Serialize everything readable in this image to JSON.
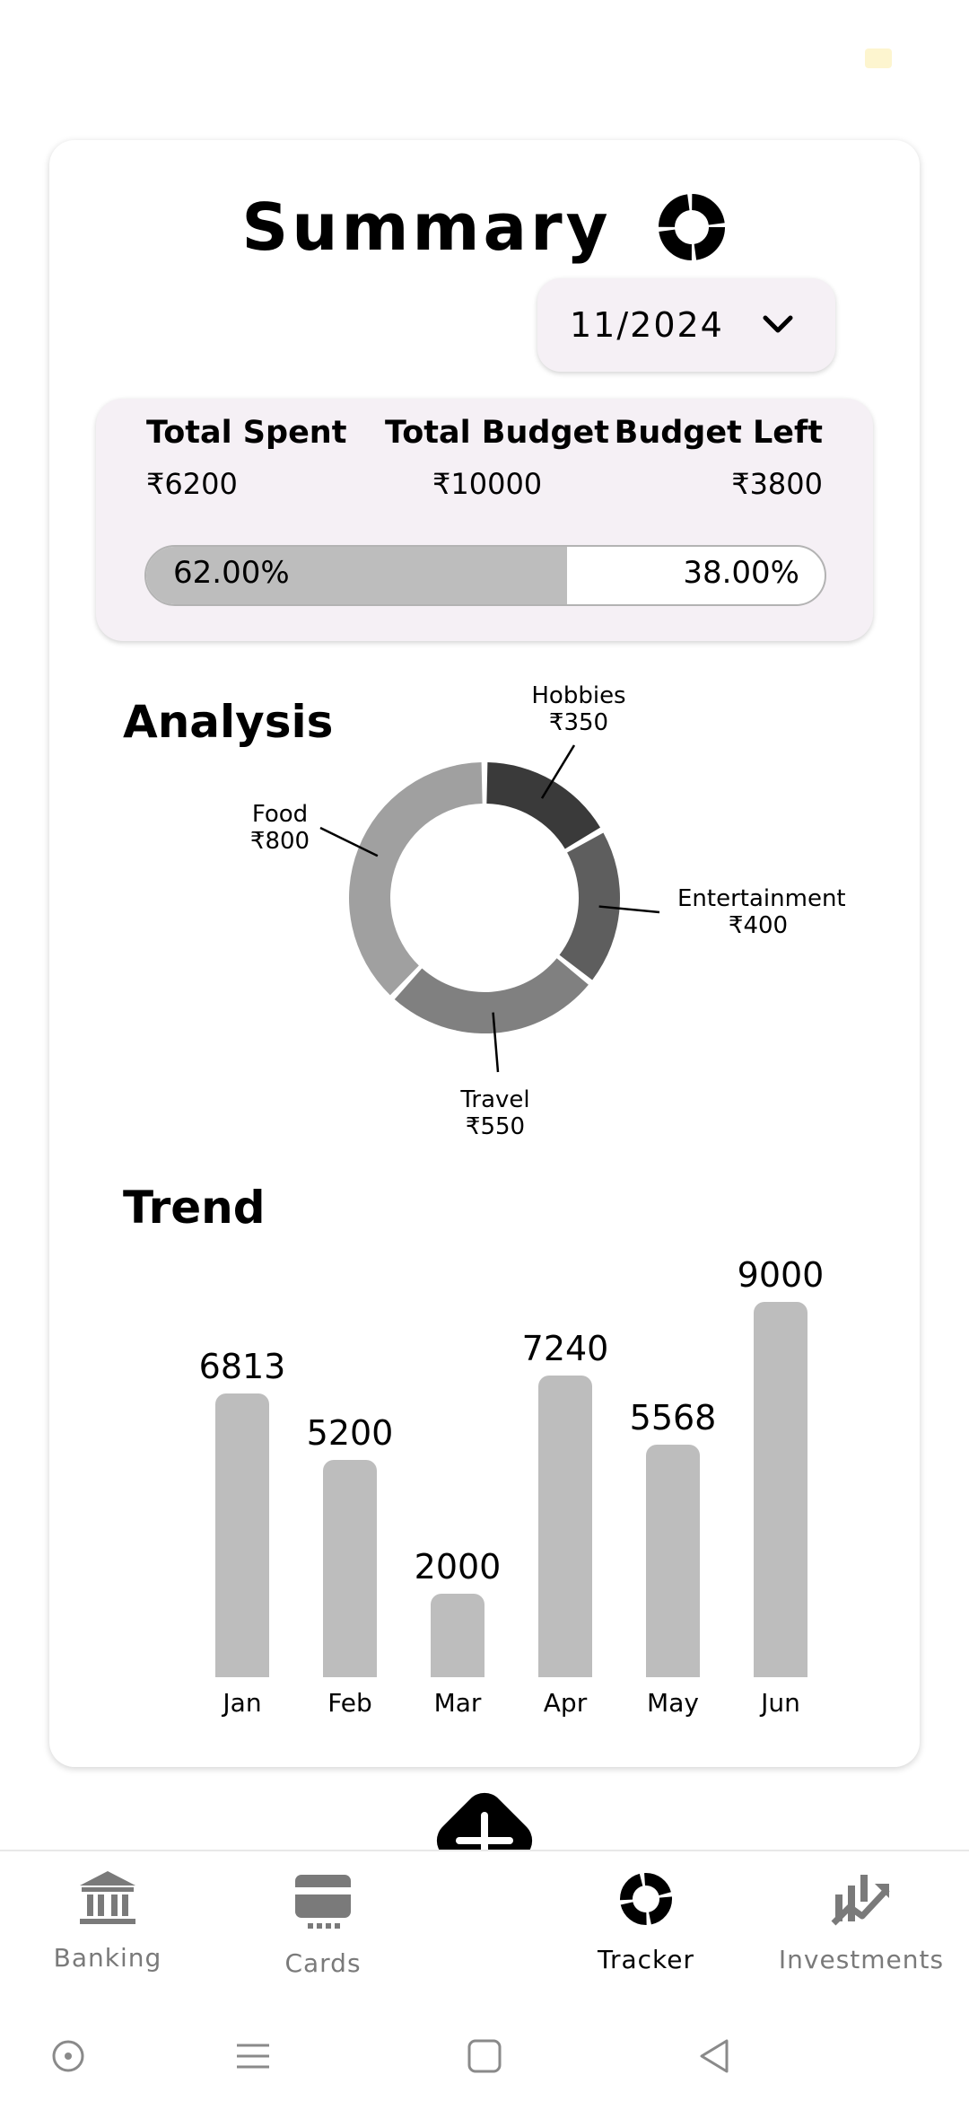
{
  "summary": {
    "title": "Summary"
  },
  "month_select": {
    "value": "11/2024"
  },
  "budget": {
    "spent_label": "Total Spent",
    "spent_value": "₹6200",
    "budget_label": "Total Budget",
    "budget_value": "₹10000",
    "left_label": "Budget Left",
    "left_value": "₹3800",
    "spent_fraction": 0.62,
    "spent_percent": "62.00%",
    "left_percent": "38.00%"
  },
  "analysis": {
    "title": "Analysis",
    "slices": [
      {
        "name": "Hobbies",
        "amount": "₹350",
        "value": 350,
        "color": "#3a3a3a"
      },
      {
        "name": "Entertainment",
        "amount": "₹400",
        "value": 400,
        "color": "#5e5e5e"
      },
      {
        "name": "Travel",
        "amount": "₹550",
        "value": 550,
        "color": "#808080"
      },
      {
        "name": "Food",
        "amount": "₹800",
        "value": 800,
        "color": "#a0a0a0"
      }
    ]
  },
  "chart_data": [
    {
      "type": "pie",
      "categories": [
        "Hobbies",
        "Entertainment",
        "Travel",
        "Food"
      ],
      "values": [
        350,
        400,
        550,
        800
      ]
    },
    {
      "type": "bar",
      "title": "Trend",
      "categories": [
        "Jan",
        "Feb",
        "Mar",
        "Apr",
        "May",
        "Jun"
      ],
      "values": [
        6813,
        5200,
        2000,
        7240,
        5568,
        9000
      ],
      "ylim": [
        0,
        9000
      ]
    }
  ],
  "trend": {
    "title": "Trend"
  },
  "nav": {
    "items": [
      {
        "label": "Banking",
        "icon": "bank-icon"
      },
      {
        "label": "Cards",
        "icon": "card-icon"
      },
      {
        "label": "Tracker",
        "icon": "tracker-icon"
      },
      {
        "label": "Investments",
        "icon": "investments-icon"
      }
    ],
    "add_icon": "plus-icon"
  }
}
